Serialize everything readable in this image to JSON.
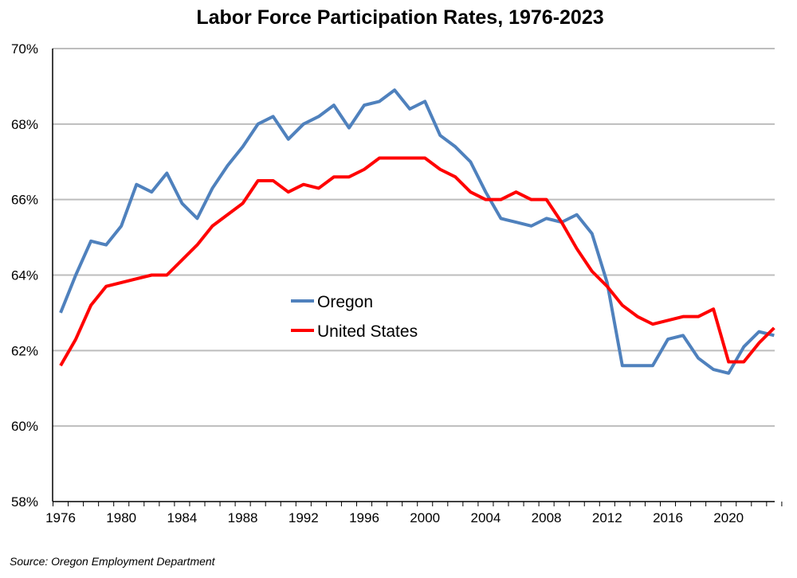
{
  "chart_data": {
    "type": "line",
    "title": "Labor Force Participation Rates, 1976-2023",
    "xlabel": "",
    "ylabel": "",
    "ylim": [
      58,
      70
    ],
    "y_ticks": [
      "58%",
      "60%",
      "62%",
      "64%",
      "66%",
      "68%",
      "70%"
    ],
    "x_tick_labels": [
      "1976",
      "1980",
      "1984",
      "1988",
      "1992",
      "1996",
      "2000",
      "2004",
      "2008",
      "2012",
      "2016",
      "2020"
    ],
    "grid": true,
    "legend_placement": "center",
    "x": [
      1976,
      1977,
      1978,
      1979,
      1980,
      1981,
      1982,
      1983,
      1984,
      1985,
      1986,
      1987,
      1988,
      1989,
      1990,
      1991,
      1992,
      1993,
      1994,
      1995,
      1996,
      1997,
      1998,
      1999,
      2000,
      2001,
      2002,
      2003,
      2004,
      2005,
      2006,
      2007,
      2008,
      2009,
      2010,
      2011,
      2012,
      2013,
      2014,
      2015,
      2016,
      2017,
      2018,
      2019,
      2020,
      2021,
      2022,
      2023
    ],
    "series": [
      {
        "name": "Oregon",
        "color": "#4F81BD",
        "values": [
          63.0,
          64.0,
          64.9,
          64.8,
          65.3,
          66.4,
          66.2,
          66.7,
          65.9,
          65.5,
          66.3,
          66.9,
          67.4,
          68.0,
          68.2,
          67.6,
          68.0,
          68.2,
          68.5,
          67.9,
          68.5,
          68.6,
          68.9,
          68.4,
          68.6,
          67.7,
          67.4,
          67.0,
          66.2,
          65.5,
          65.4,
          65.3,
          65.5,
          65.4,
          65.6,
          65.1,
          63.8,
          61.6,
          61.6,
          61.6,
          62.3,
          62.4,
          61.8,
          61.5,
          61.4,
          62.1,
          62.5,
          62.4
        ]
      },
      {
        "name": "United States",
        "color": "#FF0000",
        "values": [
          61.6,
          62.3,
          63.2,
          63.7,
          63.8,
          63.9,
          64.0,
          64.0,
          64.4,
          64.8,
          65.3,
          65.6,
          65.9,
          66.5,
          66.5,
          66.2,
          66.4,
          66.3,
          66.6,
          66.6,
          66.8,
          67.1,
          67.1,
          67.1,
          67.1,
          66.8,
          66.6,
          66.2,
          66.0,
          66.0,
          66.2,
          66.0,
          66.0,
          65.4,
          64.7,
          64.1,
          63.7,
          63.2,
          62.9,
          62.7,
          62.8,
          62.9,
          62.9,
          63.1,
          61.7,
          61.7,
          62.2,
          62.6
        ]
      }
    ],
    "source": "Source: Oregon Employment Department"
  }
}
